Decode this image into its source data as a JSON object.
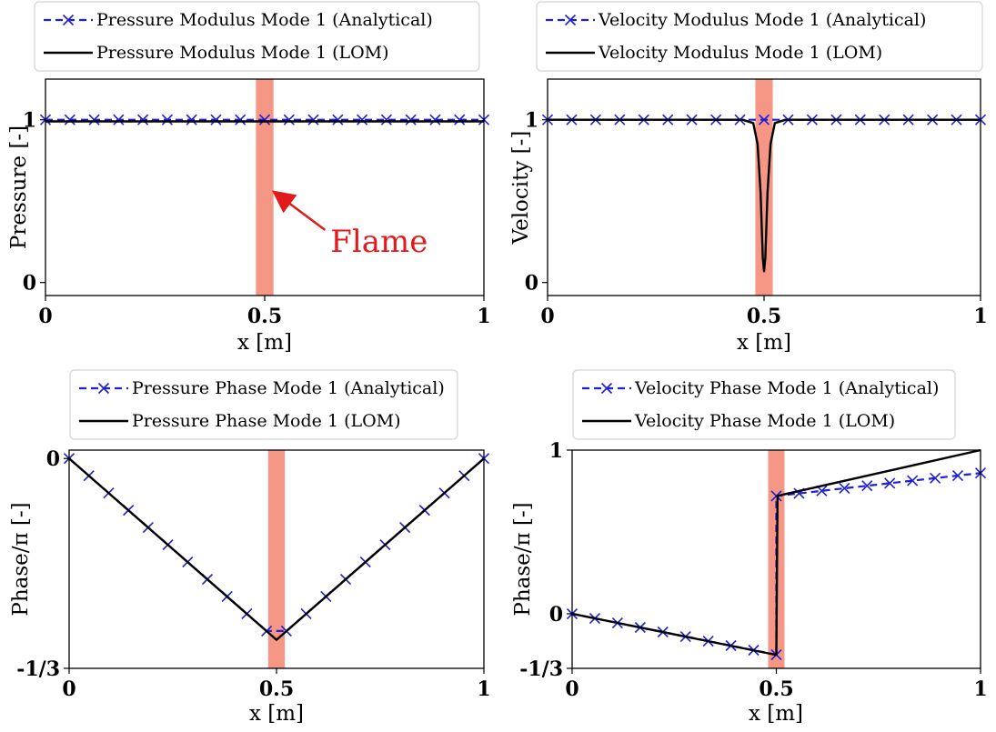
{
  "chart_data": [
    {
      "type": "line",
      "xlabel": "x [m]",
      "ylabel": "Pressure [-]",
      "xlim": [
        0,
        1
      ],
      "ylim": [
        -0.08,
        1.25
      ],
      "xticks": [
        0,
        0.5,
        1
      ],
      "xtick_labels": [
        "0",
        "0.5",
        "1"
      ],
      "yticks": [
        0,
        1
      ],
      "ytick_labels": [
        "0",
        "1"
      ],
      "flame_band": [
        0.48,
        0.52
      ],
      "legend_position": "top",
      "annotation": {
        "text": "Flame",
        "x": 0.5,
        "y": 0.58,
        "text_x": 0.65,
        "text_y": 0.2
      },
      "series": [
        {
          "name": "Pressure Modulus Mode 1 (Analytical)",
          "style": "dashed-x",
          "color": "#1f1fd6",
          "x": [
            0,
            0.0556,
            0.1111,
            0.1667,
            0.2222,
            0.2778,
            0.3333,
            0.3889,
            0.4444,
            0.5,
            0.5556,
            0.6111,
            0.6667,
            0.7222,
            0.7778,
            0.8333,
            0.8889,
            0.9444,
            1
          ],
          "y": [
            1,
            1,
            1,
            1,
            1,
            1,
            1,
            1,
            1,
            1,
            1,
            1,
            1,
            1,
            1,
            1,
            1,
            1,
            1
          ]
        },
        {
          "name": "Pressure Modulus Mode 1 (LOM)",
          "style": "solid",
          "color": "#000000",
          "x": [
            0,
            0.25,
            0.5,
            0.75,
            1
          ],
          "y": [
            0.99,
            0.99,
            0.99,
            0.99,
            0.99
          ]
        }
      ]
    },
    {
      "type": "line",
      "xlabel": "x [m]",
      "ylabel": "Velocity [-]",
      "xlim": [
        0,
        1
      ],
      "ylim": [
        -0.08,
        1.25
      ],
      "xticks": [
        0,
        0.5,
        1
      ],
      "xtick_labels": [
        "0",
        "0.5",
        "1"
      ],
      "yticks": [
        0,
        1
      ],
      "ytick_labels": [
        "0",
        "1"
      ],
      "flame_band": [
        0.48,
        0.52
      ],
      "legend_position": "top",
      "series": [
        {
          "name": "Velocity Modulus Mode 1 (Analytical)",
          "style": "dashed-x",
          "color": "#1f1fd6",
          "x": [
            0,
            0.0556,
            0.1111,
            0.1667,
            0.2222,
            0.2778,
            0.3333,
            0.3889,
            0.4444,
            0.5,
            0.5556,
            0.6111,
            0.6667,
            0.7222,
            0.7778,
            0.8333,
            0.8889,
            0.9444,
            1
          ],
          "y": [
            1,
            1,
            1,
            1,
            1,
            1,
            1,
            1,
            1,
            1,
            1,
            1,
            1,
            1,
            1,
            1,
            1,
            1,
            1
          ]
        },
        {
          "name": "Velocity Modulus Mode 1 (LOM)",
          "style": "solid",
          "color": "#000000",
          "x": [
            0,
            0.45,
            0.475,
            0.485,
            0.492,
            0.497,
            0.5,
            0.503,
            0.508,
            0.515,
            0.525,
            0.55,
            1
          ],
          "y": [
            1,
            1,
            0.98,
            0.85,
            0.55,
            0.15,
            0.07,
            0.15,
            0.55,
            0.85,
            0.98,
            1,
            1
          ]
        }
      ]
    },
    {
      "type": "line",
      "xlabel": "x [m]",
      "ylabel": "Phase/π [-]",
      "xlim": [
        0,
        1
      ],
      "ylim": [
        -0.3333,
        0.0133
      ],
      "xticks": [
        0,
        0.5,
        1
      ],
      "xtick_labels": [
        "0",
        "0.5",
        "1"
      ],
      "yticks": [
        0,
        -0.3333
      ],
      "ytick_labels": [
        "0",
        "-1/3"
      ],
      "flame_band": [
        0.48,
        0.52
      ],
      "legend_position": "top",
      "series": [
        {
          "name": "Pressure Phase Mode 1 (Analytical)",
          "style": "dashed-x",
          "color": "#1f1fd6",
          "x": [
            0,
            0.0476,
            0.0952,
            0.1429,
            0.1905,
            0.2381,
            0.2857,
            0.3333,
            0.381,
            0.4286,
            0.4762,
            0.5238,
            0.5714,
            0.619,
            0.6667,
            0.7143,
            0.7619,
            0.8095,
            0.8571,
            0.9048,
            0.9524,
            1
          ],
          "y": [
            0,
            -0.0274,
            -0.0548,
            -0.0822,
            -0.1096,
            -0.137,
            -0.1644,
            -0.1918,
            -0.2192,
            -0.2466,
            -0.274,
            -0.274,
            -0.2466,
            -0.2192,
            -0.1918,
            -0.1644,
            -0.137,
            -0.1096,
            -0.0822,
            -0.0548,
            -0.0274,
            0
          ]
        },
        {
          "name": "Pressure Phase Mode 1 (LOM)",
          "style": "solid",
          "color": "#000000",
          "x": [
            0,
            0.5,
            1
          ],
          "y": [
            0,
            -0.288,
            0
          ]
        }
      ]
    },
    {
      "type": "line",
      "xlabel": "x [m]",
      "ylabel": "Phase/π [-]",
      "xlim": [
        0,
        1
      ],
      "ylim": [
        -0.3333,
        1
      ],
      "xticks": [
        0,
        0.5,
        1
      ],
      "xtick_labels": [
        "0",
        "0.5",
        "1"
      ],
      "yticks": [
        1,
        0,
        -0.3333
      ],
      "ytick_labels": [
        "1",
        "0",
        "-1/3"
      ],
      "flame_band": [
        0.48,
        0.52
      ],
      "legend_position": "top",
      "series": [
        {
          "name": "Velocity Phase Mode 1 (Analytical)",
          "style": "dashed-x",
          "color": "#1f1fd6",
          "x": [
            0,
            0.0556,
            0.1111,
            0.1667,
            0.2222,
            0.2778,
            0.3333,
            0.3889,
            0.4444,
            0.5,
            0.5,
            0.5556,
            0.6111,
            0.6667,
            0.7222,
            0.7778,
            0.8333,
            0.8889,
            0.9444,
            1
          ],
          "y": [
            0,
            -0.0278,
            -0.0556,
            -0.0833,
            -0.1111,
            -0.1389,
            -0.1667,
            -0.1944,
            -0.2222,
            -0.25,
            0.72,
            0.7356,
            0.7511,
            0.7667,
            0.7822,
            0.7978,
            0.8133,
            0.8289,
            0.8444,
            0.86
          ]
        },
        {
          "name": "Velocity Phase Mode 1 (LOM)",
          "style": "solid",
          "color": "#000000",
          "x": [
            0,
            0.497,
            0.5,
            0.503,
            0.52,
            1
          ],
          "y": [
            0,
            -0.25,
            -0.25,
            0.72,
            0.73,
            1
          ]
        }
      ]
    }
  ]
}
